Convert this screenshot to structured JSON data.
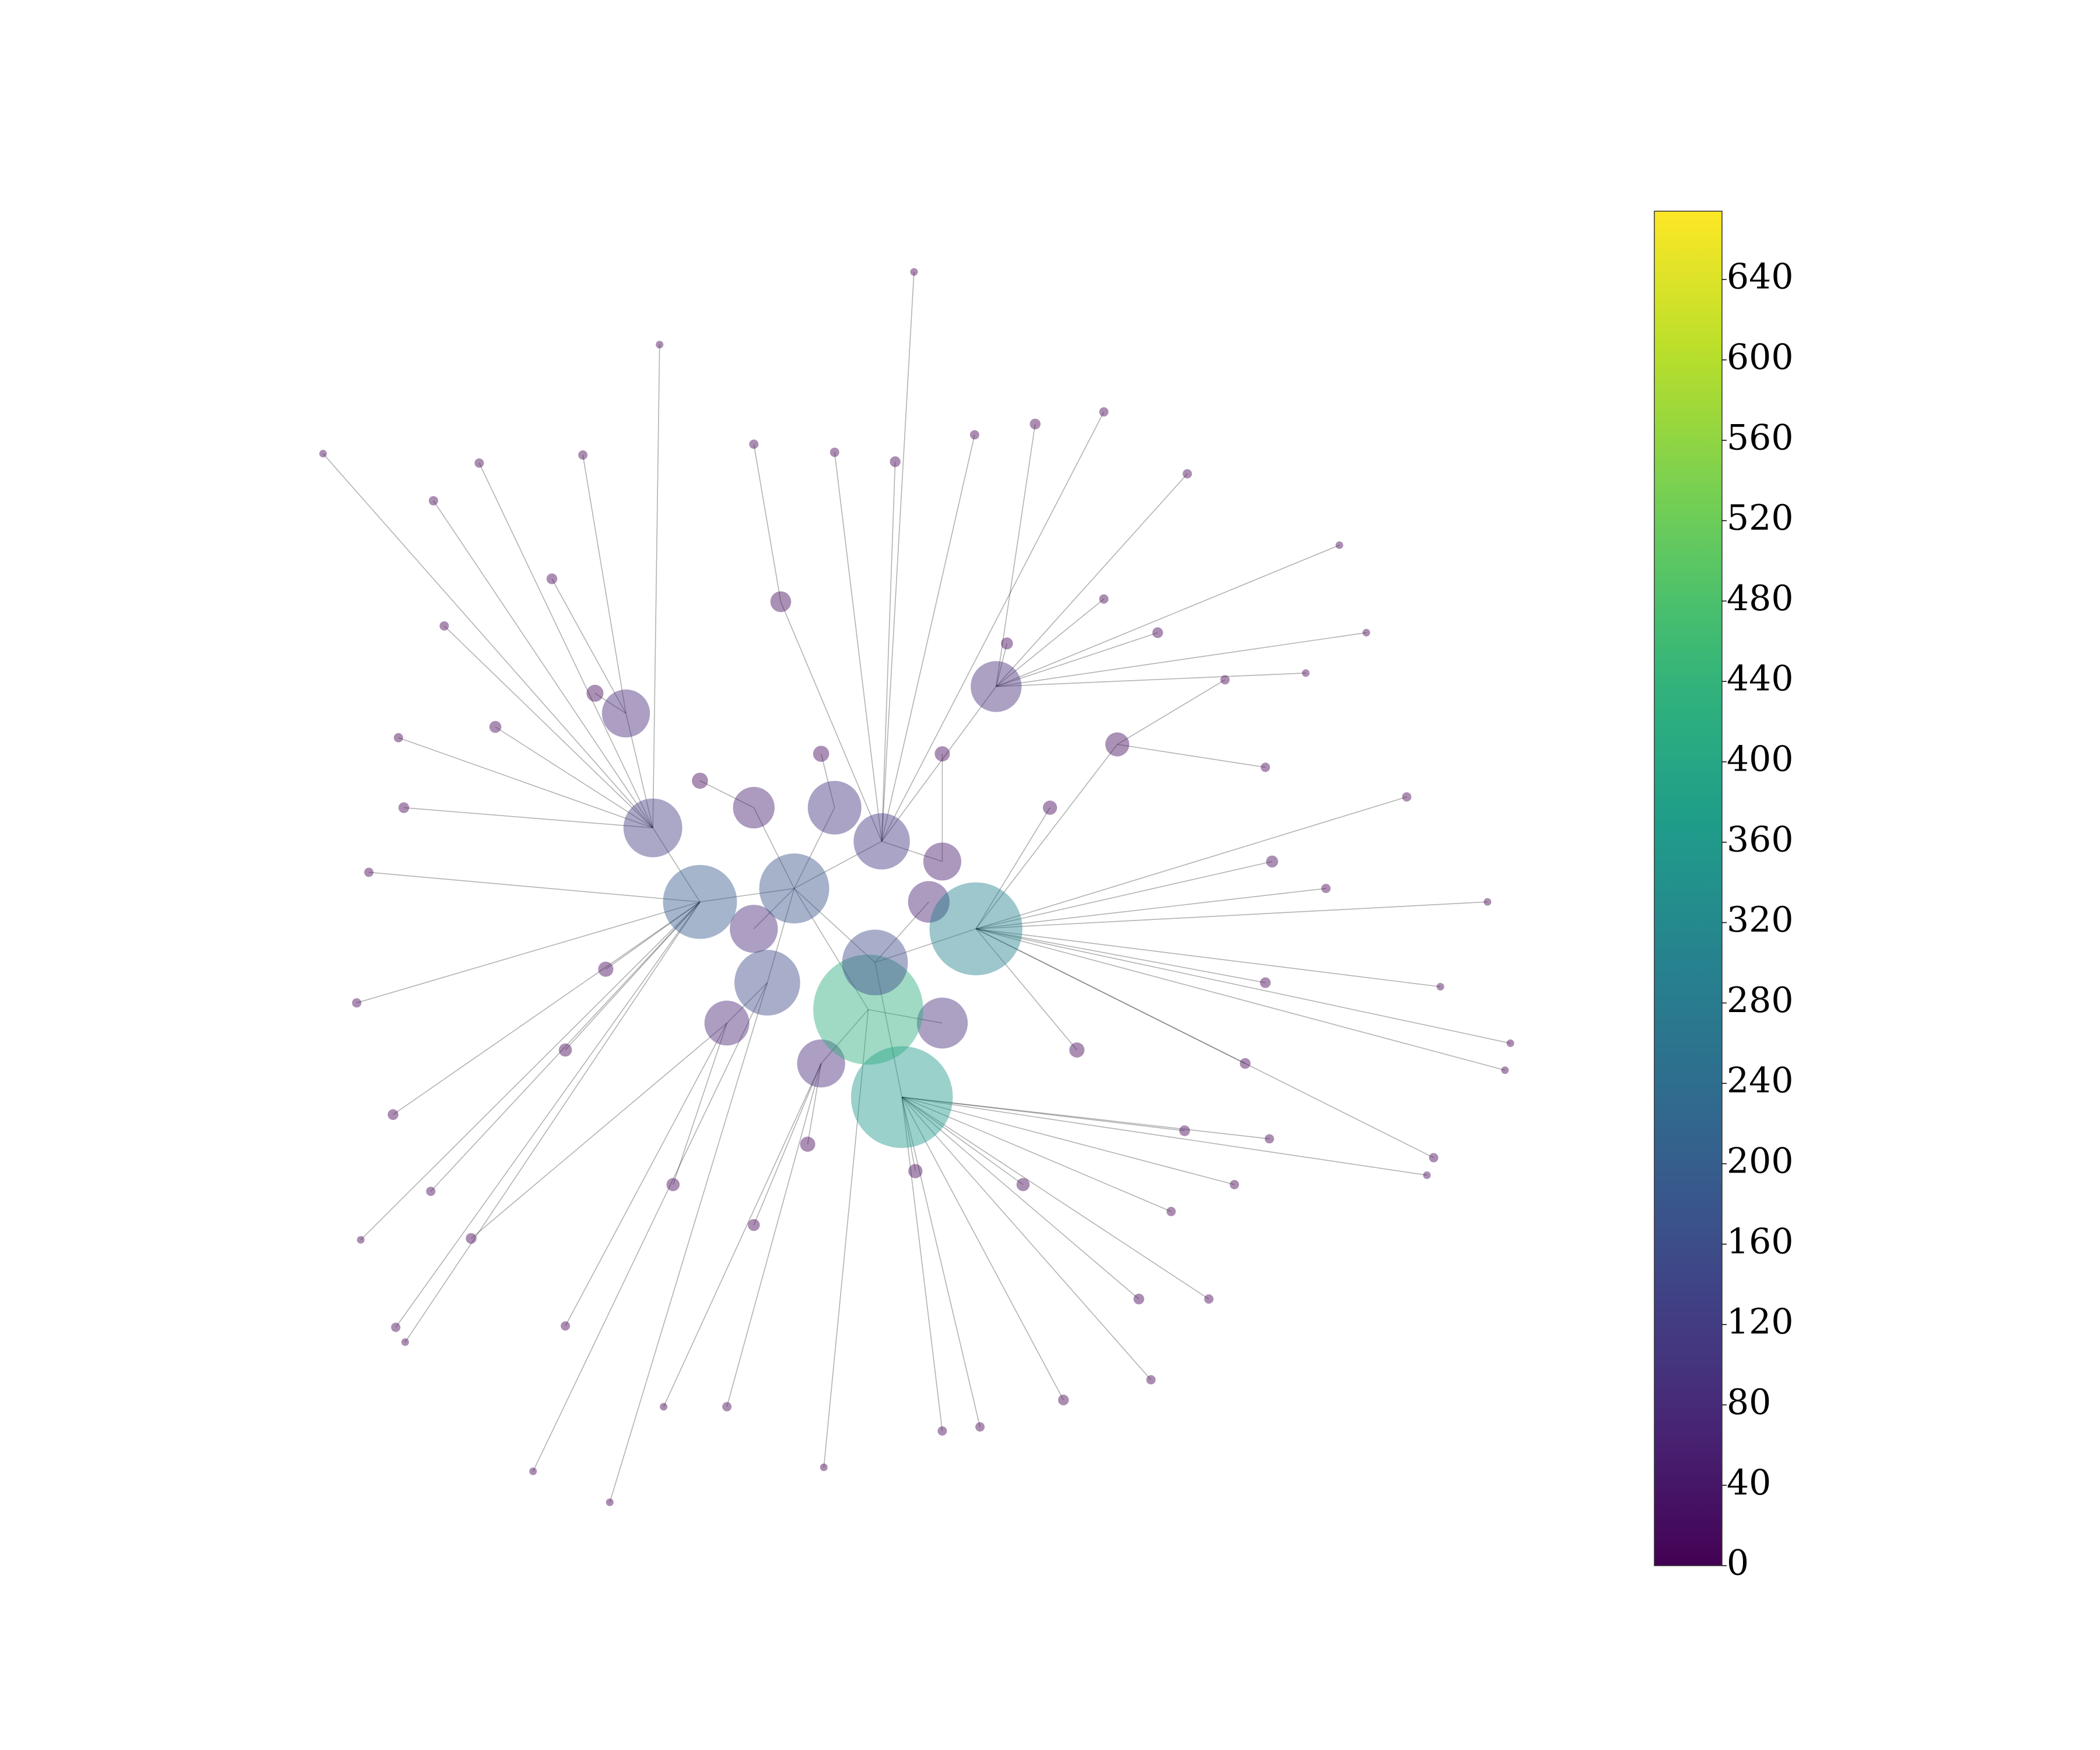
{
  "chart_data": {
    "type": "network",
    "nodes": {
      "x": [
        590,
        650,
        645,
        670,
        520,
        485,
        725,
        570,
        655,
        740,
        465,
        560,
        700,
        610,
        540,
        700,
        620,
        560,
        690,
        830,
        580,
        442,
        679,
        490,
        240,
        820,
        882,
        995,
        1015,
        1105,
        1122,
        1118,
        1065,
        1060,
        1070,
        1045,
        970,
        898,
        855,
        728,
        612,
        453,
        396,
        294,
        301,
        268,
        265,
        274,
        292,
        296,
        322,
        356,
        433,
        620,
        665,
        724,
        769,
        985,
        943,
        917,
        846,
        790,
        700,
        540,
        493,
        420,
        350,
        320,
        300,
        330,
        410,
        560,
        820,
        860,
        910,
        940,
        945,
        940,
        925,
        880,
        870,
        748,
        368,
        500,
        560,
        760,
        800,
        780,
        450,
        420,
        610,
        700,
        520,
        680,
        600
      ],
      "y": [
        660,
        715,
        750,
        815,
        670,
        615,
        690,
        730,
        625,
        510,
        530,
        600,
        640,
        790,
        760,
        760,
        600,
        690,
        670,
        553,
        447,
        515,
        202,
        256,
        337,
        306,
        352,
        405,
        470,
        670,
        775,
        795,
        860,
        873,
        733,
        592,
        500,
        965,
        1025,
        1060,
        1090,
        1116,
        1093,
        986,
        997,
        921,
        745,
        648,
        828,
        548,
        372,
        344,
        338,
        336,
        343,
        323,
        315,
        660,
        846,
        880,
        965,
        1040,
        1063,
        1045,
        1045,
        985,
        920,
        885,
        600,
        465,
        430,
        330,
        445,
        470,
        505,
        570,
        640,
        730,
        790,
        840,
        900,
        478,
        540,
        880,
        910,
        880,
        780,
        600,
        720,
        780,
        560,
        560,
        580,
        870,
        850
      ],
      "values": [
        170,
        150,
        420,
        360,
        190,
        120,
        300,
        150,
        110,
        90,
        80,
        60,
        50,
        80,
        70,
        90,
        100,
        80,
        60,
        20,
        15,
        10,
        2,
        2,
        2,
        3,
        3,
        2,
        2,
        2,
        2,
        2,
        3,
        2,
        2,
        3,
        2,
        3,
        3,
        3,
        2,
        2,
        2,
        3,
        2,
        2,
        3,
        3,
        4,
        3,
        3,
        3,
        3,
        3,
        4,
        3,
        4,
        3,
        3,
        3,
        4,
        4,
        3,
        3,
        2,
        3,
        4,
        3,
        4,
        3,
        4,
        3,
        3,
        4,
        3,
        3,
        5,
        4,
        4,
        4,
        3,
        5,
        5,
        6,
        5,
        6,
        8,
        7,
        8,
        6,
        9,
        8,
        9,
        7,
        8
      ],
      "parent": [
        null,
        0,
        0,
        1,
        0,
        4,
        1,
        0,
        0,
        8,
        5,
        0,
        8,
        2,
        7,
        2,
        0,
        0,
        1,
        6,
        8,
        10,
        8,
        5,
        5,
        8,
        9,
        9,
        9,
        6,
        6,
        6,
        6,
        3,
        6,
        6,
        9,
        3,
        3,
        3,
        2,
        7,
        7,
        4,
        4,
        4,
        4,
        4,
        4,
        5,
        5,
        5,
        10,
        8,
        8,
        8,
        9,
        6,
        3,
        3,
        3,
        3,
        3,
        13,
        13,
        14,
        14,
        4,
        5,
        5,
        10,
        20,
        9,
        9,
        19,
        19,
        6,
        6,
        6,
        3,
        3,
        9,
        5,
        14,
        13,
        3,
        6,
        6,
        4,
        4,
        16,
        12,
        11,
        3,
        13
      ]
    },
    "xlim": [
      200,
      1160
    ],
    "ylim": [
      1160,
      160
    ],
    "colorbar": {
      "colormap": "viridis",
      "clim": [
        0,
        674
      ],
      "ticks": [
        0,
        40,
        80,
        120,
        160,
        200,
        240,
        280,
        320,
        360,
        400,
        440,
        480,
        520,
        560,
        600,
        640
      ]
    }
  }
}
